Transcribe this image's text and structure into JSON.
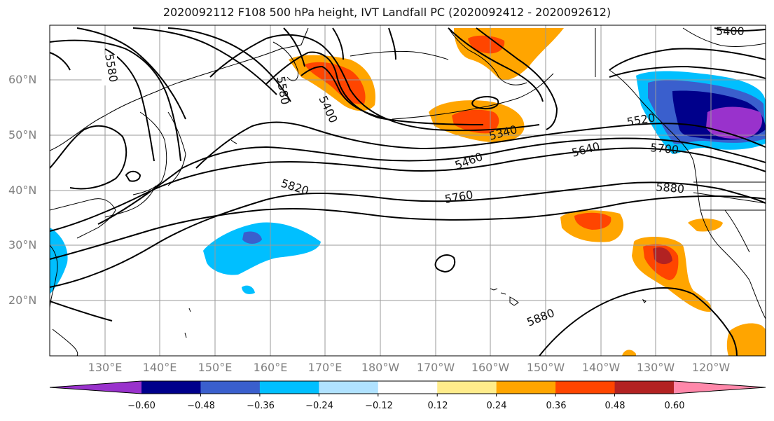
{
  "title": "2020092112 F108 500 hPa height, IVT Landfall PC (2020092412 - 2020092612)",
  "lat_labels": [
    "60°N",
    "50°N",
    "40°N",
    "30°N",
    "20°N"
  ],
  "lon_labels": [
    "130°E",
    "140°E",
    "150°E",
    "160°E",
    "170°E",
    "180°W",
    "170°W",
    "160°W",
    "150°W",
    "140°W",
    "130°W",
    "120°W"
  ],
  "colorbar": {
    "colors": [
      "#9932cc",
      "#00008b",
      "#3a5fcd",
      "#00bfff",
      "#b0e2ff",
      "#ffffff",
      "#ffec8b",
      "#ffa500",
      "#ff4500",
      "#b22222",
      "#ff88aa"
    ],
    "tick_labels": [
      "−0.60",
      "−0.48",
      "−0.36",
      "−0.24",
      "−0.12",
      "0.12",
      "0.24",
      "0.36",
      "0.48",
      "0.60"
    ],
    "extend": "both"
  },
  "contour_labels": [
    "5580",
    "5580",
    "5400",
    "5400",
    "5340",
    "5460",
    "5520",
    "5640",
    "5700",
    "5760",
    "5820",
    "5880",
    "5880"
  ]
}
